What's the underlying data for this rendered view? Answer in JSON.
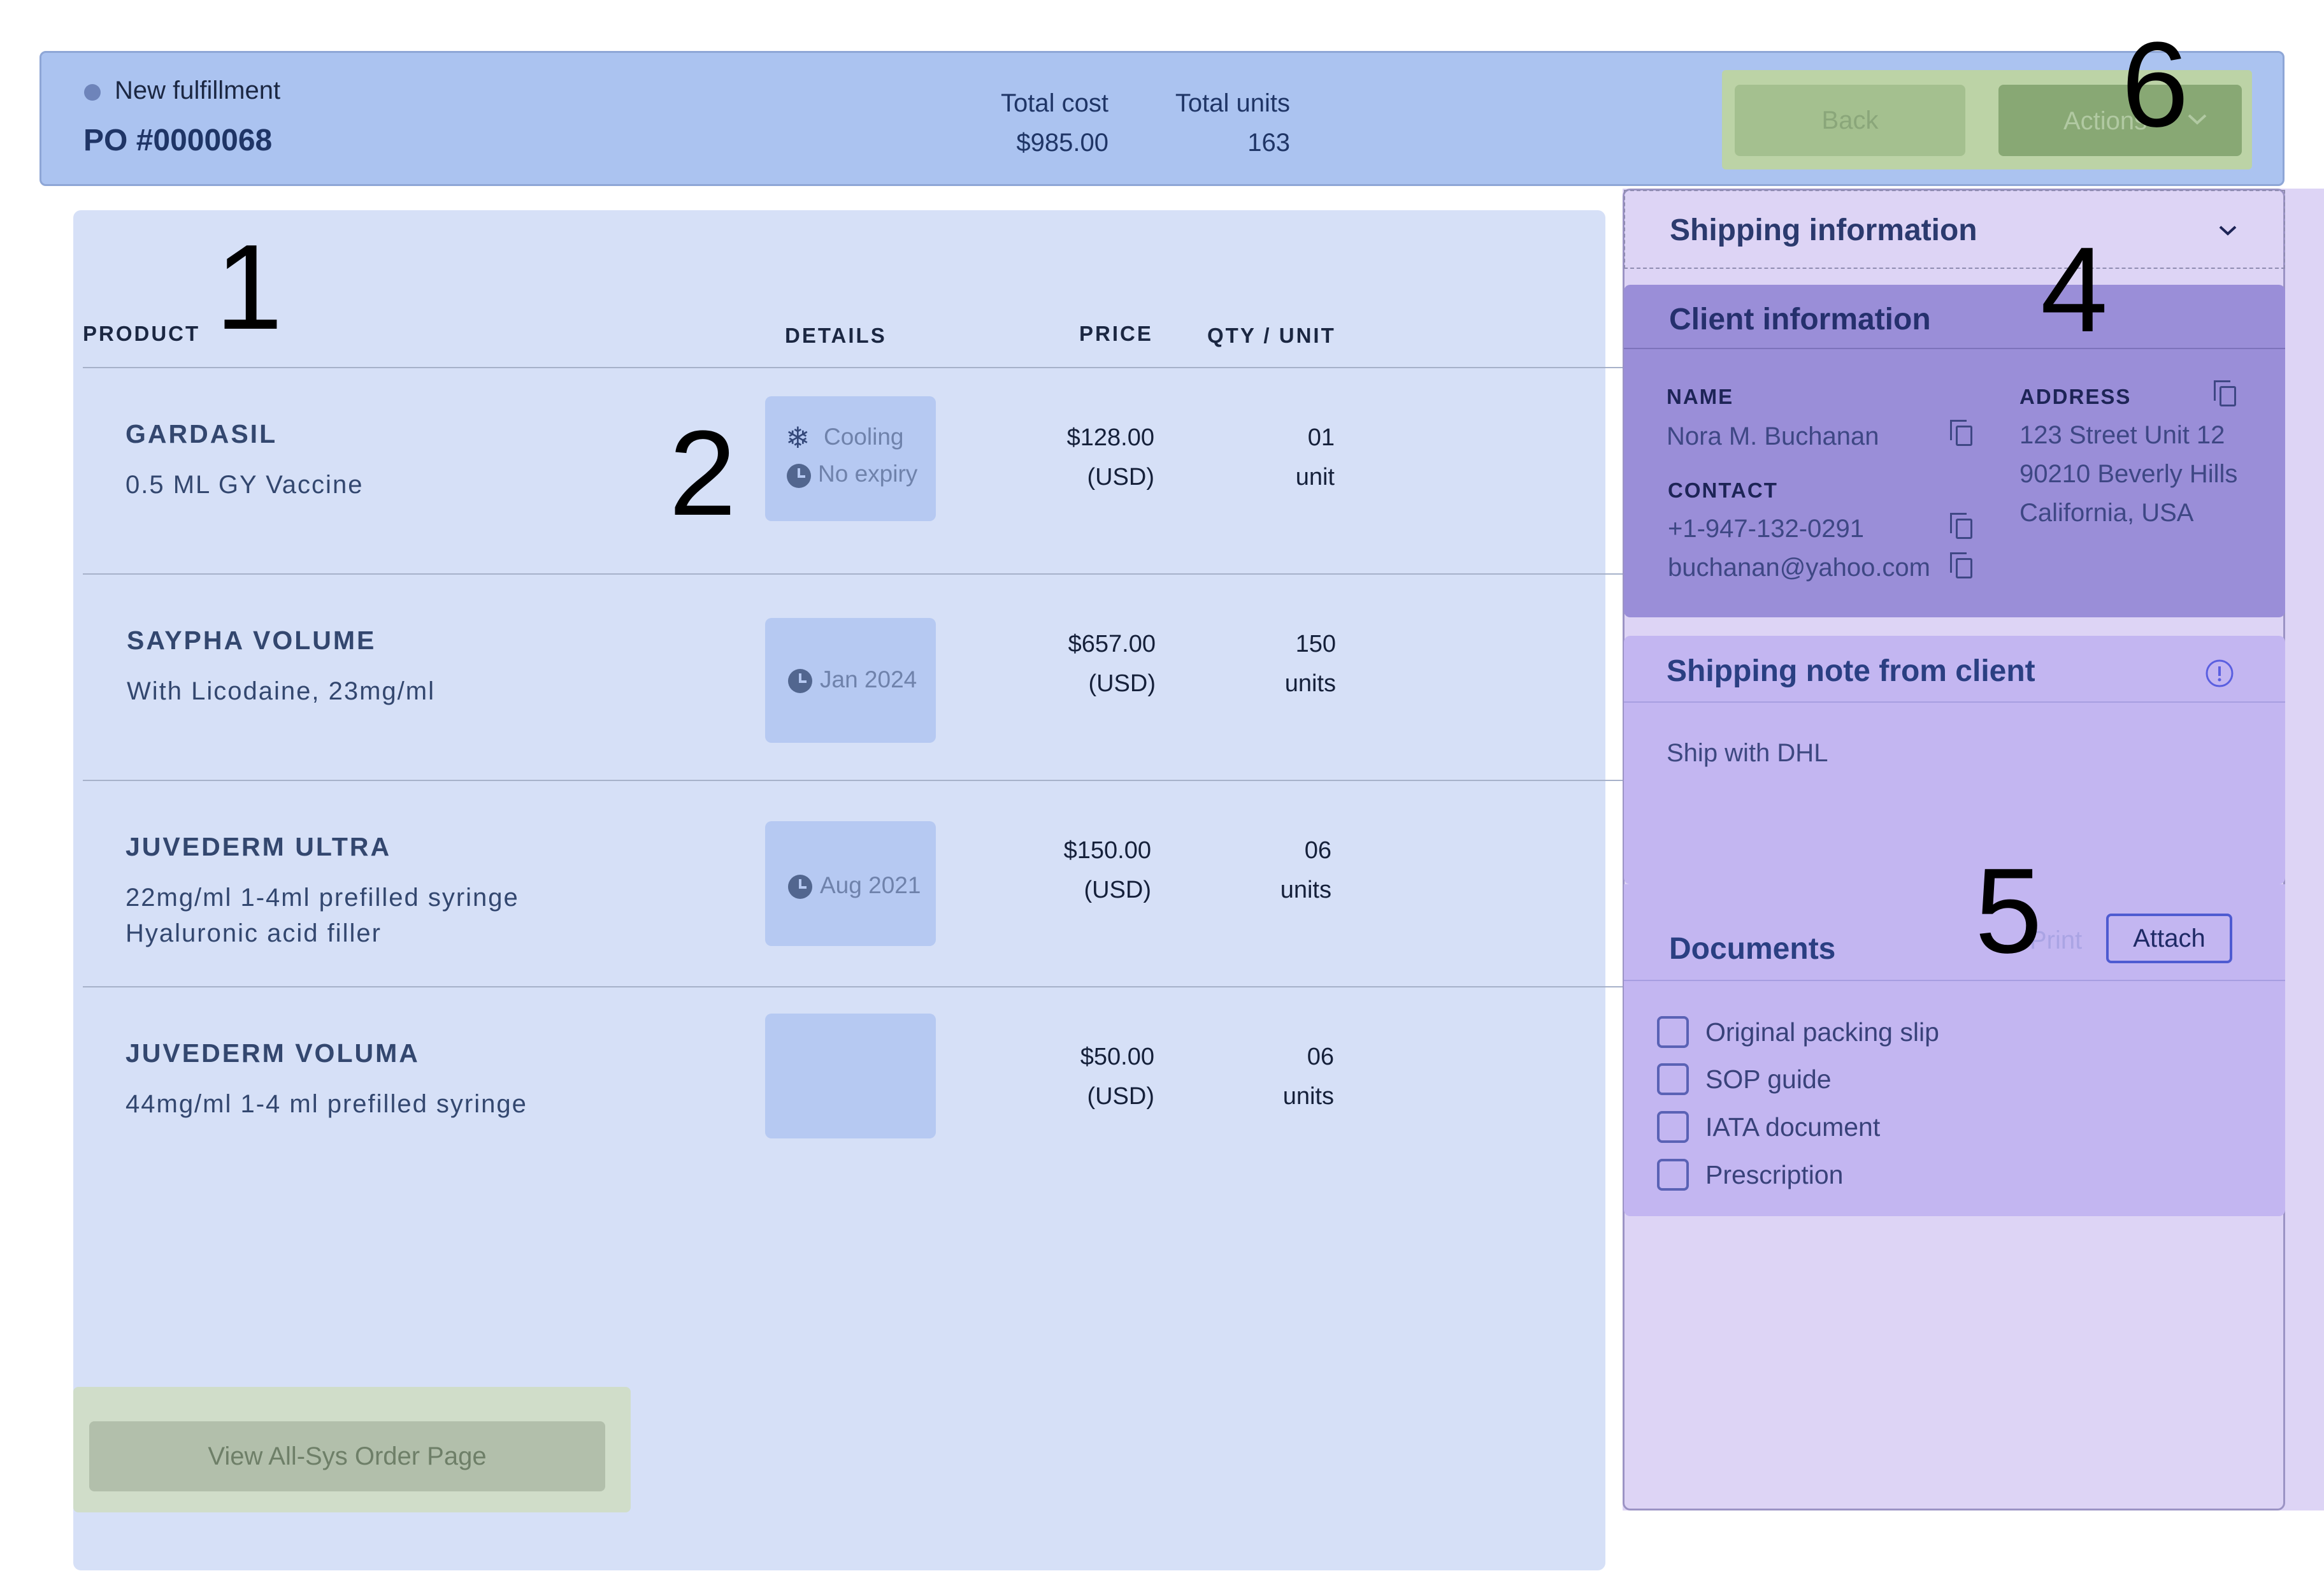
{
  "header": {
    "status": "New fulfillment",
    "po_number": "PO #0000068",
    "total_cost_label": "Total cost",
    "total_cost_value": "$985.00",
    "total_units_label": "Total units",
    "total_units_value": "163",
    "back_label": "Back",
    "actions_label": "Actions"
  },
  "table": {
    "headers": {
      "product": "PRODUCT",
      "details": "DETAILS",
      "price": "PRICE",
      "qty": "QTY / UNIT"
    },
    "rows": [
      {
        "name": "GARDASIL",
        "desc1": "0.5 ML GY Vaccine",
        "desc2": "",
        "detail1": "Cooling",
        "detail2": "No expiry",
        "price": "$128.00",
        "currency": "(USD)",
        "qty": "01",
        "unit": "unit"
      },
      {
        "name": "SAYPHA VOLUME",
        "desc1": "With Licodaine, 23mg/ml",
        "desc2": "",
        "detail1": "Jan 2024",
        "price": "$657.00",
        "currency": "(USD)",
        "qty": "150",
        "unit": "units"
      },
      {
        "name": "JUVEDERM ULTRA",
        "desc1": "22mg/ml 1-4ml prefilled syringe",
        "desc2": "Hyaluronic acid filler",
        "detail1": "Aug 2021",
        "price": "$150.00",
        "currency": "(USD)",
        "qty": "06",
        "unit": "units"
      },
      {
        "name": "JUVEDERM VOLUMA",
        "desc1": "44mg/ml 1-4 ml prefilled syringe",
        "desc2": "",
        "detail1": "",
        "price": "$50.00",
        "currency": "(USD)",
        "qty": "06",
        "unit": "units"
      }
    ],
    "view_all_label": "View All-Sys Order Page"
  },
  "shipping": {
    "title": "Shipping information",
    "client": {
      "title": "Client information",
      "name_label": "NAME",
      "name": "Nora M. Buchanan",
      "contact_label": "CONTACT",
      "phone": "+1-947-132-0291",
      "email": "buchanan@yahoo.com",
      "address_label": "ADDRESS",
      "address1": "123 Street Unit 12",
      "address2": "90210 Beverly Hills",
      "address3": "California, USA"
    },
    "note": {
      "title": "Shipping note from client",
      "text": "Ship with DHL"
    },
    "documents": {
      "title": "Documents",
      "print_label": "Print",
      "attach_label": "Attach",
      "items": [
        "Original packing slip",
        "SOP guide",
        "IATA document",
        "Prescription"
      ]
    }
  },
  "overlay_numbers": [
    "1",
    "2",
    "4",
    "5",
    "6"
  ]
}
